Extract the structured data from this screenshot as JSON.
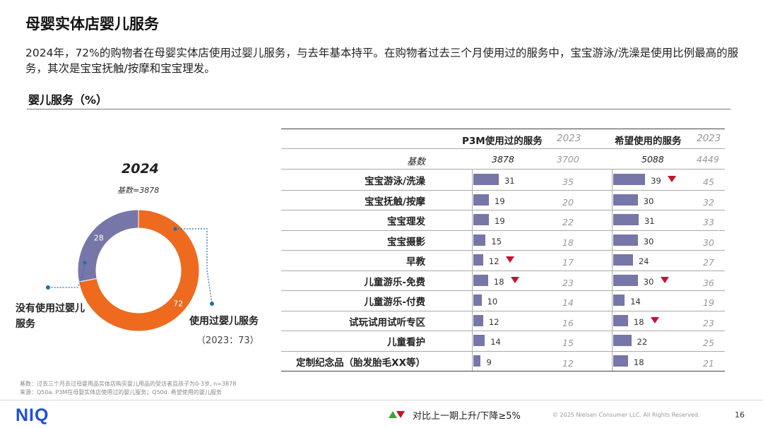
{
  "title": "母婴实体店婴儿服务",
  "summary": "2024年，72%的购物者在母婴实体店使用过婴儿服务，与去年基本持平。在购物者过去三个月使用过的服务中，宝宝游泳/洗澡是使用比例最高的服务，其次是宝宝抚触/按摩和宝宝理发。",
  "section_title": "婴儿服务（%）",
  "donut": {
    "year": "2024",
    "base": "基数=3878",
    "label_unused": "没有使用过婴儿服务",
    "label_used": "使用过婴儿服务",
    "label_used_prev": "（2023：73）"
  },
  "table": {
    "col1_header": "P3M使用过的服务",
    "col1_prev_header": "2023",
    "col2_header": "希望使用的服务",
    "col2_prev_header": "2023",
    "base_label": "基数",
    "col1_base": "3878",
    "col1_prev_base": "3700",
    "col2_base": "5088",
    "col2_prev_base": "4449"
  },
  "legend_text": "对比上一期上升/下降≥5%",
  "footnote_base": "基数：过去三个月去过母婴用品实体店购买婴儿用品的受访者且孩子为0-3岁, n=3878",
  "footnote_source": "来源：Q50a. P3M在母婴实体店使用过的婴儿服务；Q50d. 希望使用的婴儿服务",
  "logo": "NIQ",
  "copyright": "© 2025 Nielsen Consumer LLC. All Rights Reserved.",
  "page_number": "16",
  "colors": {
    "used": "#ee6a1f",
    "unused": "#7776a8",
    "bar": "#7776a8",
    "down": "#c8102e",
    "up": "#2eaa3c"
  },
  "chart_data": [
    {
      "type": "pie",
      "title": "2024",
      "categories": [
        "使用过婴儿服务",
        "没有使用过婴儿服务"
      ],
      "values": [
        72,
        28
      ]
    },
    {
      "type": "bar",
      "orientation": "horizontal",
      "categories": [
        "宝宝游泳/洗澡",
        "宝宝抚触/按摩",
        "宝宝理发",
        "宝宝摄影",
        "早教",
        "儿童游乐-免费",
        "儿童游乐-付费",
        "试玩试用试听专区",
        "儿童看护",
        "定制纪念品（胎发胎毛XX等）"
      ],
      "series": [
        {
          "name": "P3M使用过的服务",
          "values": [
            31,
            19,
            19,
            15,
            12,
            18,
            10,
            12,
            14,
            9
          ],
          "prev_2023": [
            35,
            20,
            22,
            18,
            17,
            23,
            14,
            16,
            15,
            12
          ],
          "decline": [
            false,
            false,
            false,
            false,
            true,
            true,
            false,
            false,
            false,
            false
          ]
        },
        {
          "name": "希望使用的服务",
          "values": [
            39,
            30,
            31,
            30,
            24,
            30,
            14,
            18,
            22,
            18
          ],
          "prev_2023": [
            45,
            32,
            33,
            30,
            27,
            36,
            19,
            23,
            25,
            21
          ],
          "decline": [
            true,
            false,
            false,
            false,
            false,
            true,
            false,
            true,
            false,
            false
          ]
        }
      ]
    }
  ]
}
